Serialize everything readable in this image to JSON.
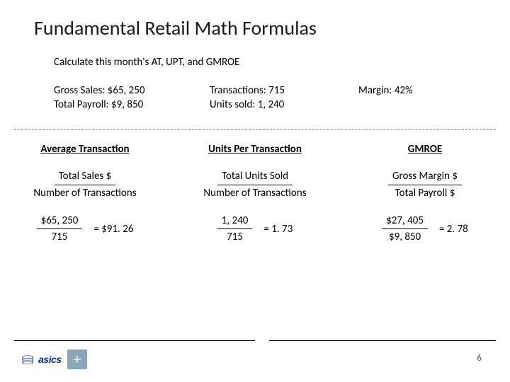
{
  "title": "Fundamental Retail Math Formulas",
  "subtitle": "Calculate this month's AT, UPT, and GMROE",
  "given": {
    "gross_sales_label": "Gross Sales: $65, 250",
    "total_payroll_label": "Total Payroll: $9, 850",
    "transactions_label": "Transactions: 715",
    "units_sold_label": "Units sold: 1, 240",
    "margin_label": "Margin: 42%"
  },
  "metrics": {
    "at": {
      "name": "Average Transaction",
      "numer": "Total Sales $",
      "denom": "Number of Transactions",
      "calc_numer": "$65, 250",
      "calc_denom": "715",
      "result": "= $91. 26"
    },
    "upt": {
      "name": "Units Per Transaction",
      "numer": "Total Units Sold",
      "denom": "Number of Transactions",
      "calc_numer": "1, 240",
      "calc_denom": "715",
      "result": "= 1. 73"
    },
    "gmroe": {
      "name": "GMROE",
      "numer": "Gross Margin $",
      "denom": "Total Payroll $",
      "calc_numer": "$27, 405",
      "calc_denom": "$9, 850",
      "result": "= 2. 78"
    }
  },
  "footer": {
    "page_number": "6",
    "logo_text": "asics"
  },
  "colors": {
    "text": "#000000",
    "brand_blue": "#0033a0",
    "divider": "#7a7a7a",
    "sub_logo_bg": "#8aa7b8"
  }
}
